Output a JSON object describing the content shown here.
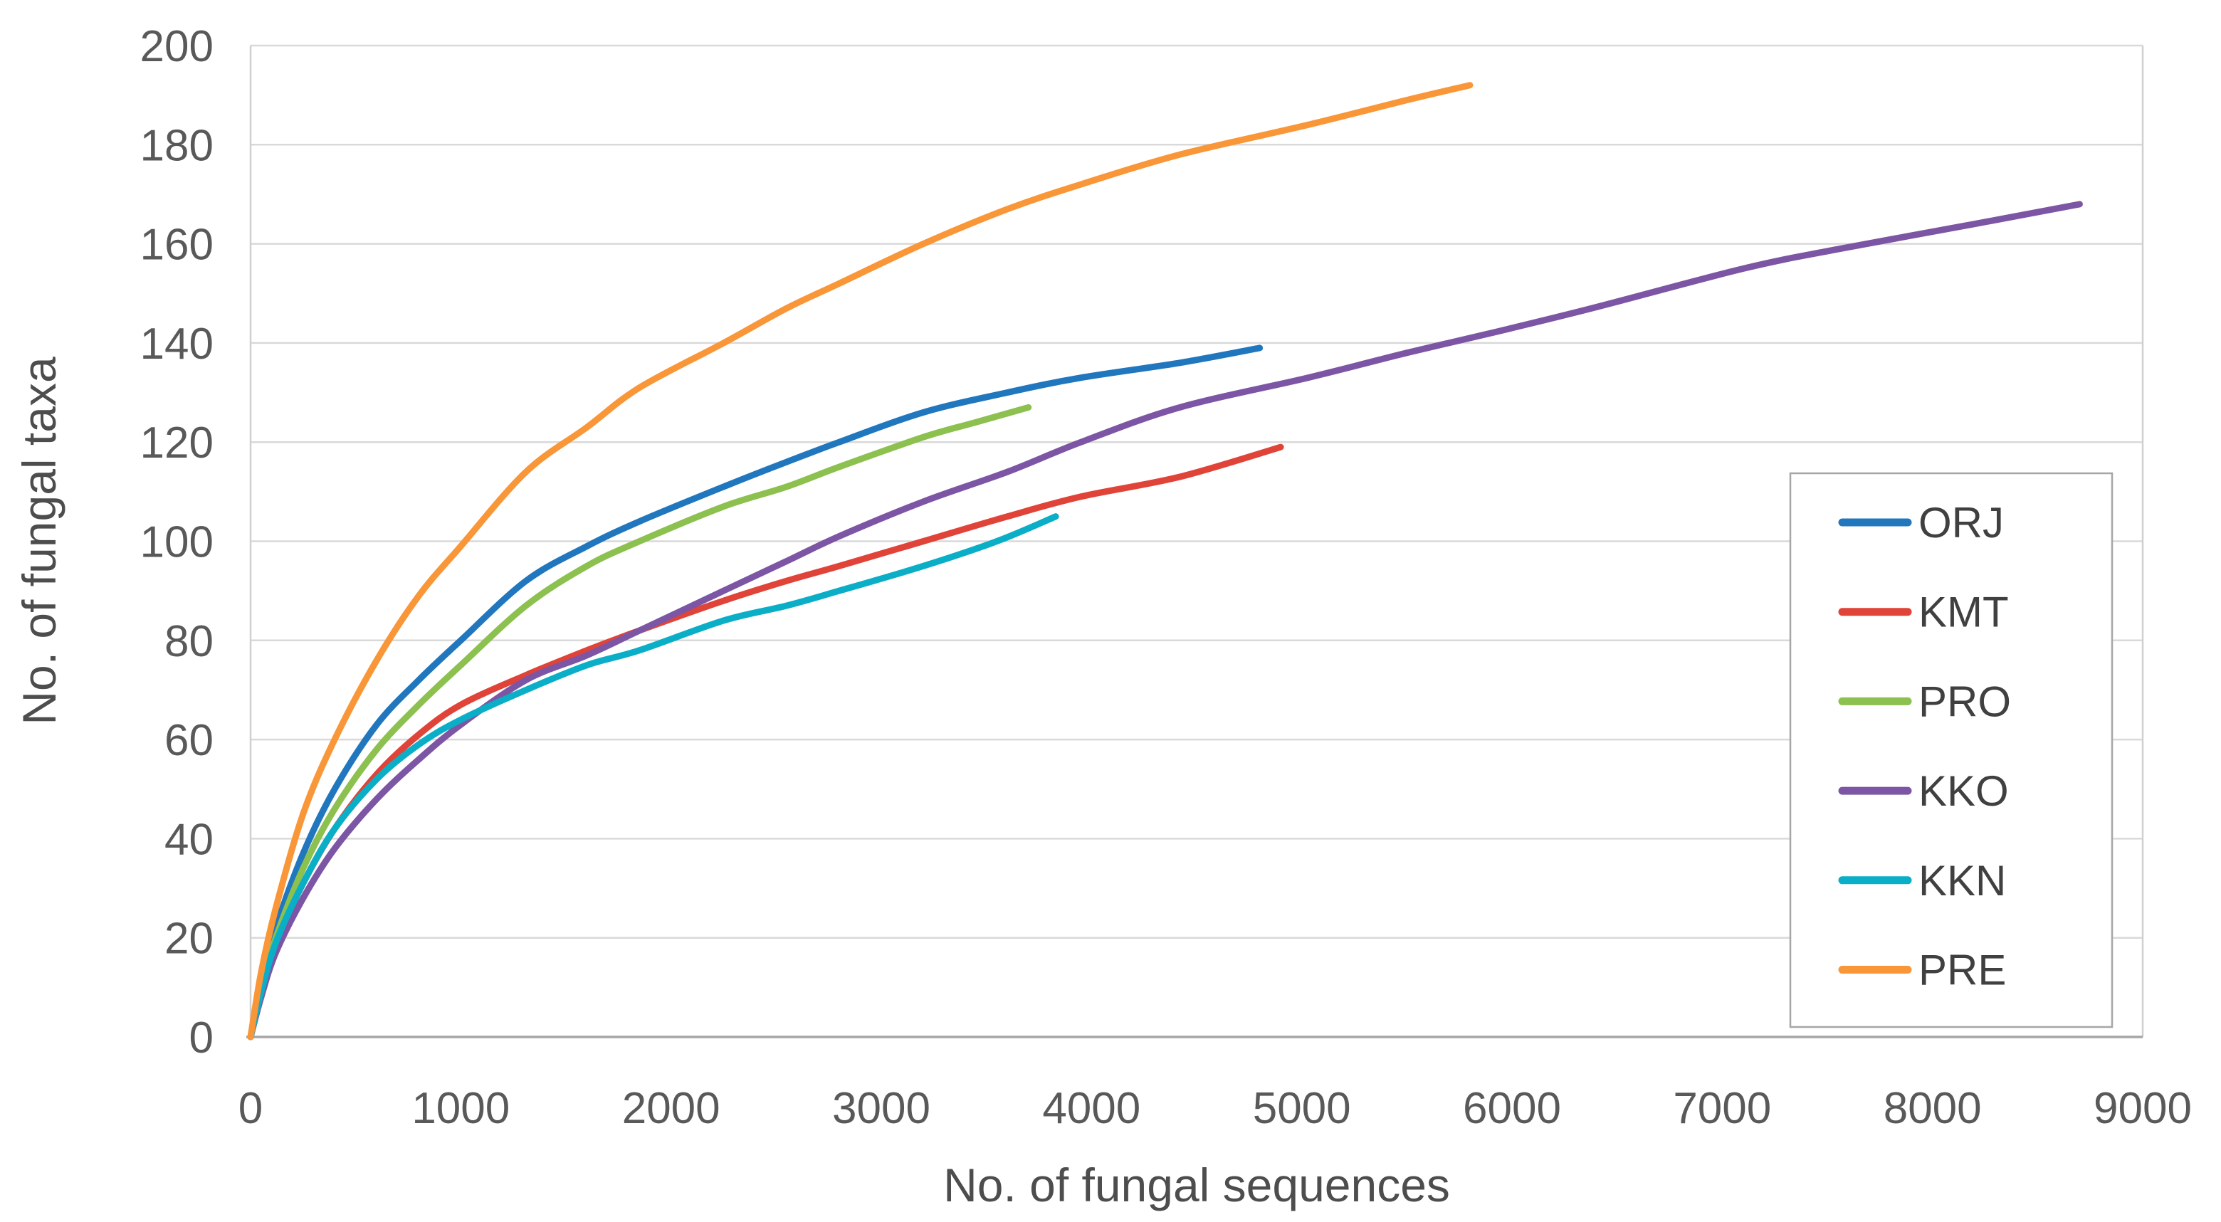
{
  "chart_data": {
    "type": "line",
    "title": "",
    "xlabel": "No. of fungal sequences",
    "ylabel": "No. of fungal taxa",
    "xlim": [
      0,
      9000
    ],
    "ylim": [
      0,
      200
    ],
    "x_ticks": [
      0,
      1000,
      2000,
      3000,
      4000,
      5000,
      6000,
      7000,
      8000,
      9000
    ],
    "y_ticks": [
      0,
      20,
      40,
      60,
      80,
      100,
      120,
      140,
      160,
      180,
      200
    ],
    "grid": "horizontal",
    "legend_position": "inside-right",
    "legend_entries": [
      "ORJ",
      "KMT",
      "PRO",
      "KKO",
      "KKN",
      "PRE"
    ],
    "series": [
      {
        "name": "ORJ",
        "color": "#2077BE",
        "points": [
          [
            0,
            0
          ],
          [
            50,
            11
          ],
          [
            120,
            22
          ],
          [
            250,
            37
          ],
          [
            400,
            50
          ],
          [
            600,
            63
          ],
          [
            800,
            72
          ],
          [
            1000,
            80
          ],
          [
            1310,
            92
          ],
          [
            1600,
            99
          ],
          [
            1850,
            104
          ],
          [
            2250,
            111
          ],
          [
            2550,
            116
          ],
          [
            2800,
            120
          ],
          [
            3200,
            126
          ],
          [
            3600,
            130
          ],
          [
            3950,
            133
          ],
          [
            4420,
            136
          ],
          [
            4800,
            139
          ]
        ]
      },
      {
        "name": "KMT",
        "color": "#E04338",
        "points": [
          [
            0,
            0
          ],
          [
            50,
            9
          ],
          [
            120,
            19
          ],
          [
            250,
            31
          ],
          [
            400,
            42
          ],
          [
            600,
            53
          ],
          [
            800,
            61
          ],
          [
            1000,
            67
          ],
          [
            1310,
            73
          ],
          [
            1600,
            78
          ],
          [
            1850,
            82
          ],
          [
            2250,
            88
          ],
          [
            2550,
            92
          ],
          [
            2800,
            95
          ],
          [
            3200,
            100
          ],
          [
            3600,
            105
          ],
          [
            3950,
            109
          ],
          [
            4420,
            113
          ],
          [
            4900,
            119
          ]
        ]
      },
      {
        "name": "PRO",
        "color": "#8CC04F",
        "points": [
          [
            0,
            0
          ],
          [
            50,
            10
          ],
          [
            120,
            20
          ],
          [
            250,
            34
          ],
          [
            400,
            46
          ],
          [
            600,
            58
          ],
          [
            800,
            67
          ],
          [
            1000,
            75
          ],
          [
            1310,
            87
          ],
          [
            1600,
            95
          ],
          [
            1850,
            100
          ],
          [
            2250,
            107
          ],
          [
            2550,
            111
          ],
          [
            2800,
            115
          ],
          [
            3200,
            121
          ],
          [
            3450,
            124
          ],
          [
            3700,
            127
          ]
        ]
      },
      {
        "name": "KKO",
        "color": "#7C56A4",
        "points": [
          [
            0,
            0
          ],
          [
            50,
            8
          ],
          [
            120,
            17
          ],
          [
            250,
            28
          ],
          [
            400,
            38
          ],
          [
            600,
            48
          ],
          [
            800,
            56
          ],
          [
            1000,
            63
          ],
          [
            1310,
            72
          ],
          [
            1600,
            77
          ],
          [
            1850,
            82
          ],
          [
            2250,
            90
          ],
          [
            2550,
            96
          ],
          [
            2800,
            101
          ],
          [
            3200,
            108
          ],
          [
            3600,
            114
          ],
          [
            3950,
            120
          ],
          [
            4420,
            127
          ],
          [
            5030,
            133
          ],
          [
            5500,
            138
          ],
          [
            5900,
            142
          ],
          [
            6380,
            147
          ],
          [
            7100,
            155
          ],
          [
            7560,
            159
          ],
          [
            8200,
            164
          ],
          [
            8700,
            168
          ]
        ]
      },
      {
        "name": "KKN",
        "color": "#0AAEC6",
        "points": [
          [
            0,
            0
          ],
          [
            50,
            9
          ],
          [
            120,
            19
          ],
          [
            250,
            31
          ],
          [
            400,
            42
          ],
          [
            600,
            52
          ],
          [
            800,
            59
          ],
          [
            1000,
            64
          ],
          [
            1310,
            70
          ],
          [
            1600,
            75
          ],
          [
            1850,
            78
          ],
          [
            2250,
            84
          ],
          [
            2550,
            87
          ],
          [
            2800,
            90
          ],
          [
            3200,
            95
          ],
          [
            3550,
            100
          ],
          [
            3830,
            105
          ]
        ]
      },
      {
        "name": "PRE",
        "color": "#F99638",
        "points": [
          [
            0,
            0
          ],
          [
            50,
            13
          ],
          [
            120,
            26
          ],
          [
            250,
            45
          ],
          [
            400,
            60
          ],
          [
            600,
            76
          ],
          [
            800,
            89
          ],
          [
            1000,
            99
          ],
          [
            1310,
            114
          ],
          [
            1600,
            123
          ],
          [
            1850,
            131
          ],
          [
            2250,
            140
          ],
          [
            2550,
            147
          ],
          [
            2800,
            152
          ],
          [
            3200,
            160
          ],
          [
            3600,
            167
          ],
          [
            3950,
            172
          ],
          [
            4420,
            178
          ],
          [
            5030,
            184
          ],
          [
            5500,
            189
          ],
          [
            5800,
            192
          ]
        ]
      }
    ]
  },
  "style": {
    "grid_color": "#D9D9D9",
    "frame_color": "#D0D0D0",
    "axis_color": "#A6A6A6",
    "tick_text_color": "#595959",
    "legend_border_color": "#A6A6A6",
    "legend_bg": "#FFFFFF",
    "background": "#FFFFFF"
  }
}
